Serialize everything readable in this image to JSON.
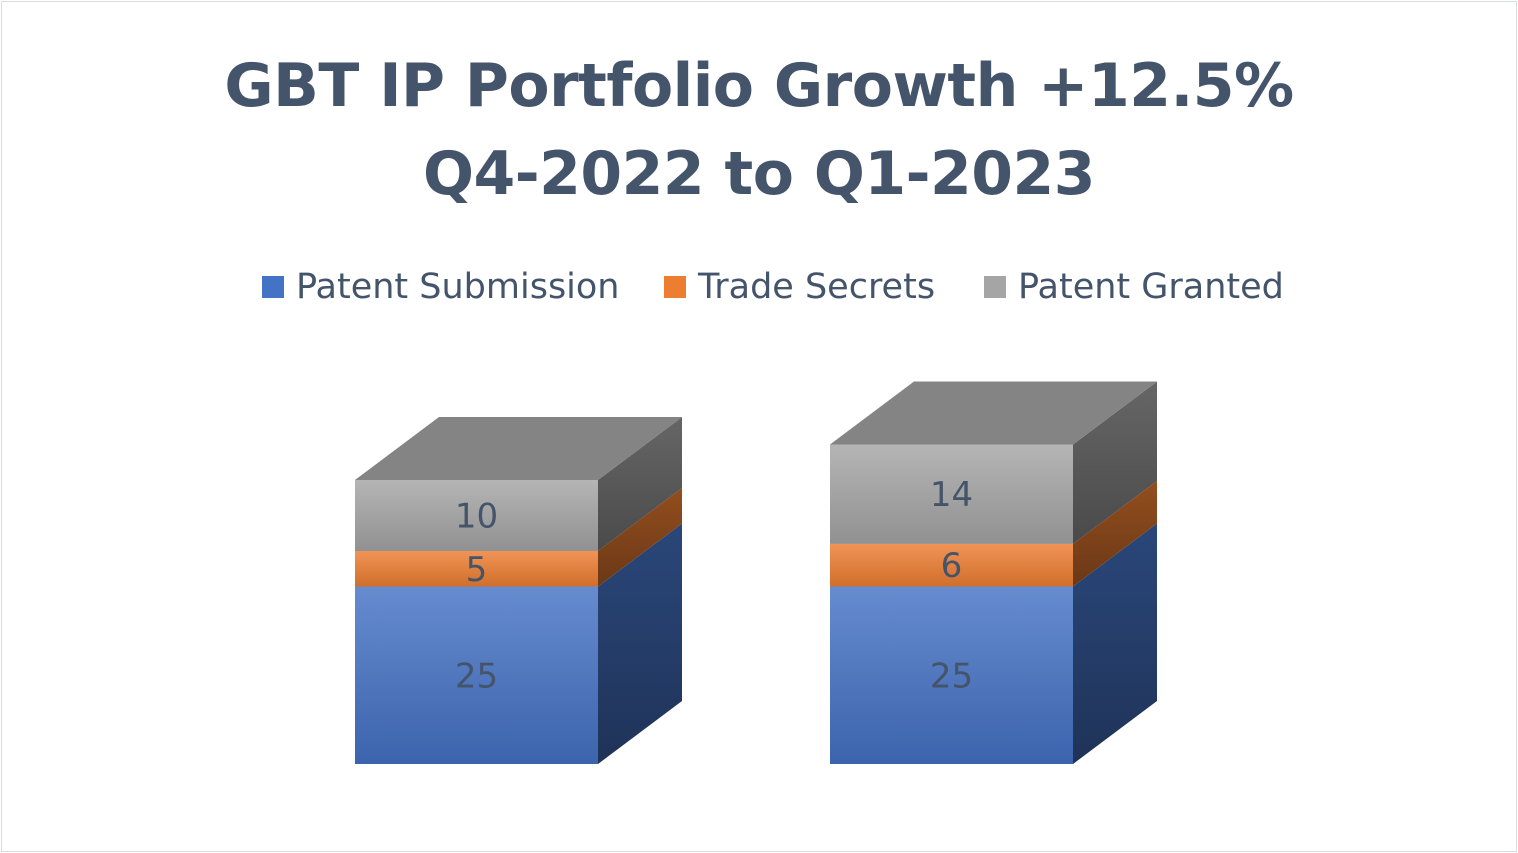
{
  "chart_data": {
    "type": "bar",
    "stacked": true,
    "three_d": true,
    "title": [
      "GBT IP Portfolio Growth +12.5%",
      "Q4-2022 to Q1-2023"
    ],
    "categories": [
      "",
      ""
    ],
    "series": [
      {
        "name": "Patent Submission",
        "values": [
          25,
          25
        ],
        "color": "#4472c4"
      },
      {
        "name": "Trade Secrets",
        "values": [
          5,
          6
        ],
        "color": "#ed7d31"
      },
      {
        "name": "Patent Granted",
        "values": [
          10,
          14
        ],
        "color": "#a5a5a5"
      }
    ],
    "legend_position": "top",
    "grid": false,
    "axes_visible": false,
    "data_labels": true
  }
}
